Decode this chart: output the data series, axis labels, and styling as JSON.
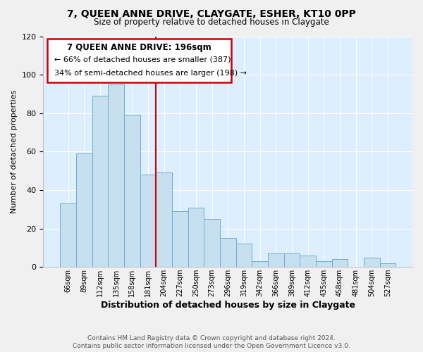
{
  "title": "7, QUEEN ANNE DRIVE, CLAYGATE, ESHER, KT10 0PP",
  "subtitle": "Size of property relative to detached houses in Claygate",
  "xlabel": "Distribution of detached houses by size in Claygate",
  "ylabel": "Number of detached properties",
  "categories": [
    "66sqm",
    "89sqm",
    "112sqm",
    "135sqm",
    "158sqm",
    "181sqm",
    "204sqm",
    "227sqm",
    "250sqm",
    "273sqm",
    "296sqm",
    "319sqm",
    "342sqm",
    "366sqm",
    "389sqm",
    "412sqm",
    "435sqm",
    "458sqm",
    "481sqm",
    "504sqm",
    "527sqm"
  ],
  "values": [
    33,
    59,
    89,
    95,
    79,
    48,
    49,
    29,
    31,
    25,
    15,
    12,
    3,
    7,
    7,
    6,
    3,
    4,
    0,
    5,
    2
  ],
  "bar_color": "#c8dff0",
  "bar_edge_color": "#6aaed6",
  "annotation_title": "7 QUEEN ANNE DRIVE: 196sqm",
  "annotation_line1": "← 66% of detached houses are smaller (387)",
  "annotation_line2": "34% of semi-detached houses are larger (198) →",
  "annotation_box_color": "#ffffff",
  "annotation_box_edge": "#cc0000",
  "footer1": "Contains HM Land Registry data © Crown copyright and database right 2024.",
  "footer2": "Contains public sector information licensed under the Open Government Licence v3.0.",
  "ylim": [
    0,
    120
  ],
  "yticks": [
    0,
    20,
    40,
    60,
    80,
    100,
    120
  ],
  "plot_bg_color": "#ddeeff",
  "fig_bg_color": "#f0f0f0",
  "grid_color": "#ffffff",
  "red_line_x": 5.5
}
